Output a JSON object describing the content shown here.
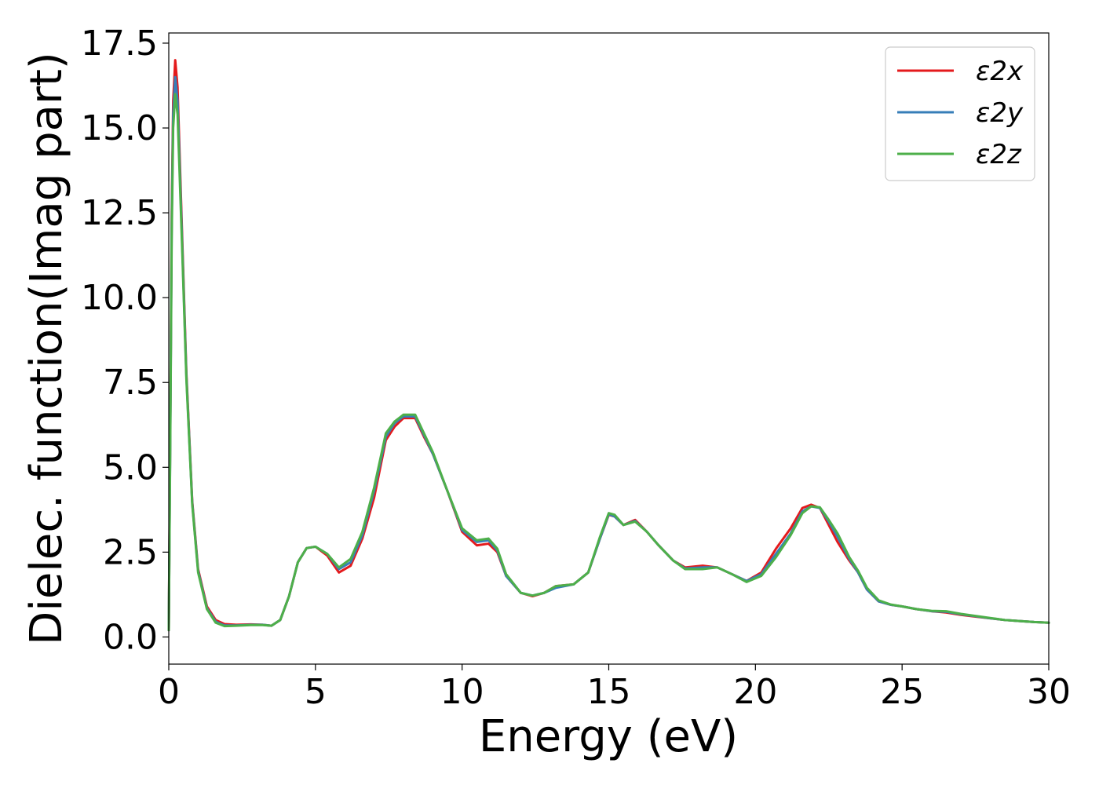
{
  "chart_data": {
    "type": "line",
    "xlabel": "Energy (eV)",
    "ylabel": "Dielec. function(Imag part)",
    "xlim": [
      0,
      30
    ],
    "ylim": [
      -0.8,
      17.8
    ],
    "xticks": [
      "0",
      "5",
      "10",
      "15",
      "20",
      "25",
      "30"
    ],
    "yticks": [
      "0.0",
      "2.5",
      "5.0",
      "7.5",
      "10.0",
      "12.5",
      "15.0",
      "17.5"
    ],
    "grid": false,
    "legend_position": "top-right",
    "series": [
      {
        "name": "ε2x",
        "color": "#e41a1c",
        "points": [
          [
            0,
            0.2
          ],
          [
            0.05,
            6.0
          ],
          [
            0.1,
            12.5
          ],
          [
            0.15,
            15.8
          ],
          [
            0.22,
            17.0
          ],
          [
            0.3,
            16.2
          ],
          [
            0.45,
            12.0
          ],
          [
            0.6,
            7.8
          ],
          [
            0.8,
            4.0
          ],
          [
            1.0,
            2.0
          ],
          [
            1.3,
            0.9
          ],
          [
            1.6,
            0.5
          ],
          [
            1.9,
            0.38
          ],
          [
            2.3,
            0.36
          ],
          [
            2.8,
            0.37
          ],
          [
            3.2,
            0.36
          ],
          [
            3.5,
            0.33
          ],
          [
            3.8,
            0.5
          ],
          [
            4.1,
            1.2
          ],
          [
            4.4,
            2.2
          ],
          [
            4.7,
            2.62
          ],
          [
            5.0,
            2.66
          ],
          [
            5.4,
            2.4
          ],
          [
            5.8,
            1.9
          ],
          [
            6.2,
            2.1
          ],
          [
            6.6,
            2.9
          ],
          [
            7.0,
            4.1
          ],
          [
            7.4,
            5.8
          ],
          [
            7.7,
            6.2
          ],
          [
            8.0,
            6.45
          ],
          [
            8.4,
            6.45
          ],
          [
            8.7,
            5.9
          ],
          [
            9.0,
            5.4
          ],
          [
            9.5,
            4.3
          ],
          [
            10.0,
            3.1
          ],
          [
            10.5,
            2.7
          ],
          [
            10.9,
            2.75
          ],
          [
            11.2,
            2.5
          ],
          [
            11.5,
            1.8
          ],
          [
            12.0,
            1.3
          ],
          [
            12.4,
            1.2
          ],
          [
            12.8,
            1.3
          ],
          [
            13.2,
            1.5
          ],
          [
            13.8,
            1.55
          ],
          [
            14.3,
            1.9
          ],
          [
            14.7,
            2.9
          ],
          [
            15.0,
            3.6
          ],
          [
            15.2,
            3.55
          ],
          [
            15.5,
            3.3
          ],
          [
            15.9,
            3.45
          ],
          [
            16.3,
            3.1
          ],
          [
            16.7,
            2.7
          ],
          [
            17.2,
            2.25
          ],
          [
            17.6,
            2.05
          ],
          [
            18.2,
            2.1
          ],
          [
            18.7,
            2.05
          ],
          [
            19.2,
            1.85
          ],
          [
            19.7,
            1.65
          ],
          [
            20.2,
            1.9
          ],
          [
            20.7,
            2.6
          ],
          [
            21.2,
            3.2
          ],
          [
            21.6,
            3.8
          ],
          [
            21.9,
            3.9
          ],
          [
            22.2,
            3.8
          ],
          [
            22.5,
            3.3
          ],
          [
            22.8,
            2.8
          ],
          [
            23.2,
            2.25
          ],
          [
            23.5,
            1.9
          ],
          [
            23.8,
            1.4
          ],
          [
            24.2,
            1.05
          ],
          [
            24.6,
            0.95
          ],
          [
            25.0,
            0.9
          ],
          [
            25.5,
            0.82
          ],
          [
            26.0,
            0.76
          ],
          [
            26.5,
            0.72
          ],
          [
            27.0,
            0.65
          ],
          [
            27.5,
            0.6
          ],
          [
            28.0,
            0.55
          ],
          [
            28.5,
            0.5
          ],
          [
            29.0,
            0.47
          ],
          [
            29.5,
            0.44
          ],
          [
            30.0,
            0.42
          ]
        ]
      },
      {
        "name": "ε2y",
        "color": "#377eb8",
        "points": [
          [
            0,
            0.2
          ],
          [
            0.05,
            5.8
          ],
          [
            0.1,
            12.2
          ],
          [
            0.15,
            15.4
          ],
          [
            0.22,
            16.5
          ],
          [
            0.3,
            15.8
          ],
          [
            0.45,
            11.8
          ],
          [
            0.6,
            7.7
          ],
          [
            0.8,
            3.95
          ],
          [
            1.0,
            1.95
          ],
          [
            1.3,
            0.85
          ],
          [
            1.6,
            0.45
          ],
          [
            1.9,
            0.34
          ],
          [
            2.3,
            0.34
          ],
          [
            2.8,
            0.36
          ],
          [
            3.2,
            0.36
          ],
          [
            3.5,
            0.33
          ],
          [
            3.8,
            0.5
          ],
          [
            4.1,
            1.2
          ],
          [
            4.4,
            2.2
          ],
          [
            4.7,
            2.62
          ],
          [
            5.0,
            2.66
          ],
          [
            5.4,
            2.45
          ],
          [
            5.8,
            2.0
          ],
          [
            6.2,
            2.2
          ],
          [
            6.6,
            3.0
          ],
          [
            7.0,
            4.3
          ],
          [
            7.4,
            5.9
          ],
          [
            7.7,
            6.3
          ],
          [
            8.0,
            6.5
          ],
          [
            8.4,
            6.5
          ],
          [
            8.7,
            5.95
          ],
          [
            9.0,
            5.4
          ],
          [
            9.5,
            4.3
          ],
          [
            10.0,
            3.15
          ],
          [
            10.5,
            2.8
          ],
          [
            10.9,
            2.85
          ],
          [
            11.2,
            2.55
          ],
          [
            11.5,
            1.8
          ],
          [
            12.0,
            1.3
          ],
          [
            12.4,
            1.22
          ],
          [
            12.8,
            1.3
          ],
          [
            13.2,
            1.45
          ],
          [
            13.8,
            1.55
          ],
          [
            14.3,
            1.9
          ],
          [
            14.7,
            2.9
          ],
          [
            15.0,
            3.62
          ],
          [
            15.2,
            3.55
          ],
          [
            15.5,
            3.3
          ],
          [
            15.9,
            3.42
          ],
          [
            16.3,
            3.1
          ],
          [
            16.7,
            2.7
          ],
          [
            17.2,
            2.25
          ],
          [
            17.6,
            2.02
          ],
          [
            18.2,
            2.05
          ],
          [
            18.7,
            2.05
          ],
          [
            19.2,
            1.85
          ],
          [
            19.7,
            1.65
          ],
          [
            20.2,
            1.85
          ],
          [
            20.7,
            2.45
          ],
          [
            21.2,
            3.05
          ],
          [
            21.6,
            3.7
          ],
          [
            21.9,
            3.85
          ],
          [
            22.2,
            3.8
          ],
          [
            22.5,
            3.4
          ],
          [
            22.8,
            2.95
          ],
          [
            23.2,
            2.3
          ],
          [
            23.5,
            1.9
          ],
          [
            23.8,
            1.4
          ],
          [
            24.2,
            1.05
          ],
          [
            24.6,
            0.95
          ],
          [
            25.0,
            0.9
          ],
          [
            25.5,
            0.82
          ],
          [
            26.0,
            0.76
          ],
          [
            26.5,
            0.74
          ],
          [
            27.0,
            0.67
          ],
          [
            27.5,
            0.61
          ],
          [
            28.0,
            0.55
          ],
          [
            28.5,
            0.5
          ],
          [
            29.0,
            0.47
          ],
          [
            29.5,
            0.44
          ],
          [
            30.0,
            0.42
          ]
        ]
      },
      {
        "name": "ε2z",
        "color": "#4daf4a",
        "points": [
          [
            0,
            0.2
          ],
          [
            0.05,
            5.6
          ],
          [
            0.1,
            11.8
          ],
          [
            0.15,
            15.0
          ],
          [
            0.22,
            16.0
          ],
          [
            0.3,
            15.4
          ],
          [
            0.45,
            11.6
          ],
          [
            0.6,
            7.6
          ],
          [
            0.8,
            3.9
          ],
          [
            1.0,
            1.9
          ],
          [
            1.3,
            0.82
          ],
          [
            1.6,
            0.42
          ],
          [
            1.9,
            0.32
          ],
          [
            2.3,
            0.33
          ],
          [
            2.8,
            0.35
          ],
          [
            3.2,
            0.35
          ],
          [
            3.5,
            0.33
          ],
          [
            3.8,
            0.5
          ],
          [
            4.1,
            1.2
          ],
          [
            4.4,
            2.2
          ],
          [
            4.7,
            2.62
          ],
          [
            5.0,
            2.66
          ],
          [
            5.4,
            2.45
          ],
          [
            5.8,
            2.05
          ],
          [
            6.2,
            2.3
          ],
          [
            6.6,
            3.1
          ],
          [
            7.0,
            4.4
          ],
          [
            7.4,
            6.0
          ],
          [
            7.7,
            6.35
          ],
          [
            8.0,
            6.55
          ],
          [
            8.4,
            6.55
          ],
          [
            8.7,
            6.0
          ],
          [
            9.0,
            5.45
          ],
          [
            9.5,
            4.3
          ],
          [
            10.0,
            3.2
          ],
          [
            10.5,
            2.85
          ],
          [
            10.9,
            2.9
          ],
          [
            11.2,
            2.6
          ],
          [
            11.5,
            1.85
          ],
          [
            12.0,
            1.3
          ],
          [
            12.4,
            1.22
          ],
          [
            12.8,
            1.3
          ],
          [
            13.2,
            1.5
          ],
          [
            13.8,
            1.55
          ],
          [
            14.3,
            1.9
          ],
          [
            14.7,
            2.95
          ],
          [
            15.0,
            3.65
          ],
          [
            15.2,
            3.6
          ],
          [
            15.5,
            3.3
          ],
          [
            15.9,
            3.4
          ],
          [
            16.3,
            3.1
          ],
          [
            16.7,
            2.7
          ],
          [
            17.2,
            2.25
          ],
          [
            17.6,
            2.0
          ],
          [
            18.2,
            2.0
          ],
          [
            18.7,
            2.05
          ],
          [
            19.2,
            1.85
          ],
          [
            19.7,
            1.62
          ],
          [
            20.2,
            1.8
          ],
          [
            20.7,
            2.35
          ],
          [
            21.2,
            3.0
          ],
          [
            21.6,
            3.65
          ],
          [
            21.9,
            3.85
          ],
          [
            22.2,
            3.82
          ],
          [
            22.5,
            3.45
          ],
          [
            22.8,
            3.05
          ],
          [
            23.2,
            2.35
          ],
          [
            23.5,
            1.95
          ],
          [
            23.8,
            1.45
          ],
          [
            24.2,
            1.08
          ],
          [
            24.6,
            0.96
          ],
          [
            25.0,
            0.9
          ],
          [
            25.5,
            0.82
          ],
          [
            26.0,
            0.77
          ],
          [
            26.5,
            0.76
          ],
          [
            27.0,
            0.68
          ],
          [
            27.5,
            0.62
          ],
          [
            28.0,
            0.56
          ],
          [
            28.5,
            0.5
          ],
          [
            29.0,
            0.47
          ],
          [
            29.5,
            0.44
          ],
          [
            30.0,
            0.42
          ]
        ]
      }
    ]
  }
}
